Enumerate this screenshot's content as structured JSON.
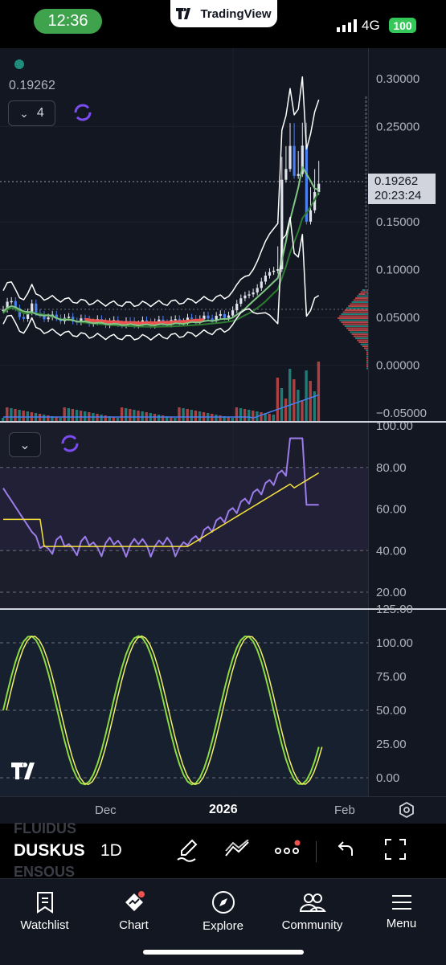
{
  "status_bar": {
    "time": "12:36",
    "app_name": "TradingView",
    "network": "4G",
    "battery": "100"
  },
  "chart": {
    "last_value": "0.19262",
    "indicator_count": "4",
    "price_label": "0.19262",
    "countdown": "20:23:24",
    "price_axis": [
      "0.30000",
      "0.25000",
      "0.20000",
      "0.15000",
      "0.10000",
      "0.05000",
      "0.00000",
      "−0.05000"
    ],
    "rsi_axis": [
      "100.00",
      "80.00",
      "60.00",
      "40.00",
      "20.00"
    ],
    "stoch_axis": [
      "125.00",
      "100.00",
      "75.00",
      "50.00",
      "25.00",
      "0.00"
    ],
    "time_axis": [
      "Dec",
      "2026",
      "Feb"
    ],
    "colors": {
      "up": "#26a69a",
      "down": "#ef5350",
      "blue": "#4a7ff0",
      "rsi": "#9b7ce8",
      "signal": "#f6e33c",
      "stoch_k": "#8bdc3f",
      "stoch_d": "#f0f06a"
    }
  },
  "toolbar": {
    "ghost_symbol_above": "FLUIDUS",
    "symbol": "DUSKUS",
    "ghost_symbol_below": "ENSOUS",
    "interval": "1D"
  },
  "tabs": [
    {
      "label": "Watchlist",
      "icon": "bookmark-icon"
    },
    {
      "label": "Chart",
      "icon": "chart-icon"
    },
    {
      "label": "Explore",
      "icon": "compass-icon"
    },
    {
      "label": "Community",
      "icon": "people-icon"
    },
    {
      "label": "Menu",
      "icon": "hamburger-icon"
    }
  ]
}
